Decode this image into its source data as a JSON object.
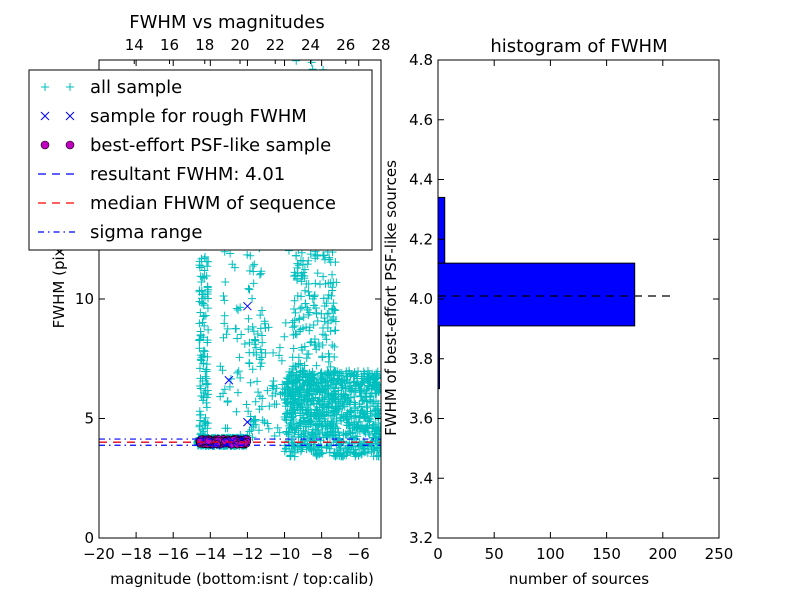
{
  "chart_data": [
    {
      "type": "scatter",
      "title": "FWHM vs magnitudes",
      "xlabel": "magnitude (bottom:isnt / top:calib)",
      "ylabel": "FWHM (pix)",
      "xlim": [
        -20,
        -4.8
      ],
      "ylim": [
        0,
        20
      ],
      "x_ticks": [
        "−20",
        "−18",
        "−16",
        "−14",
        "−12",
        "−10",
        "−8",
        "−6"
      ],
      "x_tick_values": [
        -20,
        -18,
        -16,
        -14,
        -12,
        -10,
        -8,
        -6
      ],
      "top_xlim": [
        12.0,
        28.0
      ],
      "top_x_ticks": [
        "14",
        "16",
        "18",
        "20",
        "22",
        "24",
        "26",
        "28"
      ],
      "top_x_tick_values": [
        14,
        16,
        18,
        20,
        22,
        24,
        26,
        28
      ],
      "y_ticks": [
        "0",
        "5",
        "10"
      ],
      "y_tick_values": [
        0,
        5,
        10
      ],
      "legend": {
        "position": "upper-left",
        "entries": [
          {
            "label": "all sample",
            "marker": "+",
            "color": "#00bfbf"
          },
          {
            "label": "sample for rough FWHM",
            "marker": "x",
            "color": "#0000ff"
          },
          {
            "label": "best-effort PSF-like sample",
            "marker": "o",
            "color": "#bf00bf"
          },
          {
            "label": "resultant FWHM: 4.01",
            "style": "dashed",
            "color": "#0000ff"
          },
          {
            "label": "median FHWM of sequence",
            "style": "dashed",
            "color": "#ff0000"
          },
          {
            "label": "sigma range",
            "style": "dashdot",
            "color": "#0000ff"
          }
        ]
      },
      "series": [
        {
          "name": "all sample",
          "color": "#00bfbf",
          "marker": "+",
          "clusters": [
            {
              "x": [
                -14.7,
                -12.0
              ],
              "y": [
                3.85,
                4.2
              ],
              "count": 520
            },
            {
              "x": [
                -14.6,
                -14.1
              ],
              "y": [
                4.2,
                12.0
              ],
              "count": 110
            },
            {
              "x": [
                -13.5,
                -11.2
              ],
              "y": [
                4.3,
                13.5
              ],
              "count": 90
            },
            {
              "x": [
                -12.0,
                -9.5
              ],
              "y": [
                4.2,
                9.5
              ],
              "count": 70
            },
            {
              "x": [
                -10.0,
                -4.8
              ],
              "y": [
                3.4,
                7.0
              ],
              "count": 900
            },
            {
              "x": [
                -9.6,
                -7.2
              ],
              "y": [
                5.0,
                12.0
              ],
              "count": 220
            },
            {
              "x": [
                -10.0,
                -7.6
              ],
              "y": [
                12.0,
                20.0
              ],
              "count": 80
            }
          ]
        },
        {
          "name": "sample for rough FWHM",
          "color": "#0000ff",
          "marker": "x",
          "points": [
            [
              -12.0,
              9.7
            ],
            [
              -13.0,
              6.6
            ],
            [
              -12.0,
              4.85
            ],
            [
              -14.4,
              4.1
            ],
            [
              -13.1,
              3.95
            ],
            [
              -12.3,
              4.15
            ],
            [
              -13.7,
              3.9
            ],
            [
              -12.8,
              4.05
            ]
          ]
        },
        {
          "name": "best-effort PSF-like sample",
          "color": "#bf00bf",
          "marker": "o",
          "clusters": [
            {
              "x": [
                -14.6,
                -12.0
              ],
              "y": [
                3.9,
                4.15
              ],
              "count": 160
            }
          ]
        }
      ],
      "lines": [
        {
          "name": "resultant FWHM: 4.01",
          "y": 4.01,
          "color": "#0000ff",
          "style": "dashed"
        },
        {
          "name": "median FHWM of sequence",
          "y": 4.01,
          "color": "#ff0000",
          "style": "dashed"
        },
        {
          "name": "sigma range",
          "y": 3.88,
          "color": "#0000ff",
          "style": "dashdot"
        },
        {
          "name": "sigma range",
          "y": 4.14,
          "color": "#0000ff",
          "style": "dashdot"
        }
      ]
    },
    {
      "type": "bar",
      "orientation": "horizontal",
      "title": "histogram of FWHM",
      "xlabel": "number of sources",
      "ylabel": "FWHM of best-effort PSF-like sources",
      "xlim": [
        0,
        250
      ],
      "ylim": [
        3.2,
        4.8
      ],
      "x_ticks": [
        "0",
        "50",
        "100",
        "150",
        "200",
        "250"
      ],
      "x_tick_values": [
        0,
        50,
        100,
        150,
        200,
        250
      ],
      "y_ticks": [
        "3.2",
        "3.4",
        "3.6",
        "3.8",
        "4.0",
        "4.2",
        "4.4",
        "4.6",
        "4.8"
      ],
      "y_tick_values": [
        3.2,
        3.4,
        3.6,
        3.8,
        4.0,
        4.2,
        4.4,
        4.6,
        4.8
      ],
      "bar_color": "#0000ff",
      "bins": [
        {
          "y0": 3.7,
          "y1": 3.91,
          "count": 1
        },
        {
          "y0": 3.91,
          "y1": 4.12,
          "count": 175
        },
        {
          "y0": 4.12,
          "y1": 4.34,
          "count": 6
        }
      ],
      "reference_line": {
        "y": 4.01,
        "x_range": [
          0,
          210
        ],
        "style": "dashed",
        "color": "#000000"
      }
    }
  ]
}
